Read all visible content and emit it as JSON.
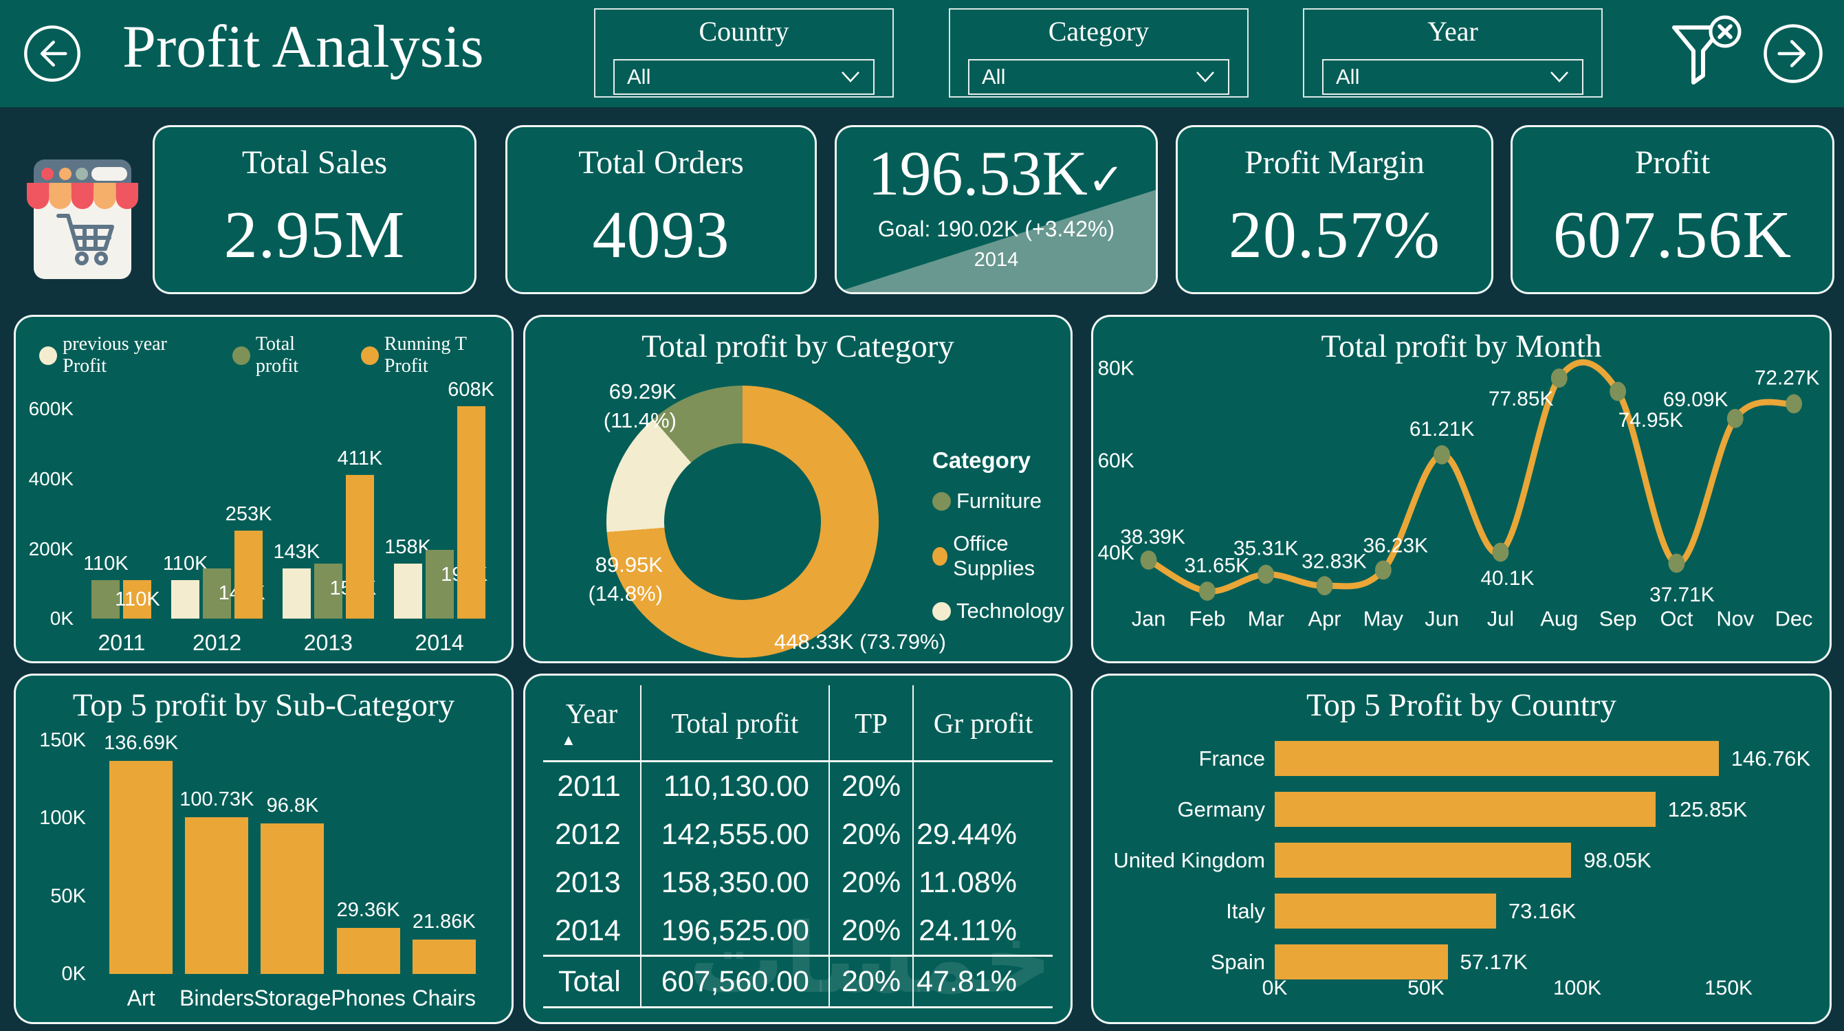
{
  "colors": {
    "teal": "#045E57",
    "background": "#0E333D",
    "orange": "#EAA637",
    "cream": "#F4ECCE",
    "olive": "#7E9159",
    "goal_overlay": "#68988F",
    "text": "#FFFFFF"
  },
  "header": {
    "title": "Profit Analysis",
    "slicers": [
      {
        "label": "Country",
        "value": "All"
      },
      {
        "label": "Category",
        "value": "All"
      },
      {
        "label": "Year",
        "value": "All"
      }
    ]
  },
  "kpis": {
    "total_sales": {
      "title": "Total Sales",
      "value": "2.95M"
    },
    "total_orders": {
      "title": "Total Orders",
      "value": "4093"
    },
    "goal": {
      "value": "196.53K",
      "check": "✓",
      "subtitle": "Goal: 190.02K (+3.42%)",
      "year": "2014"
    },
    "profit_margin": {
      "title": "Profit Margin",
      "value": "20.57%"
    },
    "profit": {
      "title": "Profit",
      "value": "607.56K"
    }
  },
  "chart_data": [
    {
      "id": "profit-by-year",
      "type": "bar",
      "legend": [
        {
          "label": "previous year Profit",
          "color": "#F4ECCE"
        },
        {
          "label": "Total profit",
          "color": "#7E9159"
        },
        {
          "label": "Running T Profit",
          "color": "#EAA637"
        }
      ],
      "categories": [
        "2011",
        "2012",
        "2013",
        "2014"
      ],
      "series": [
        {
          "name": "previous year Profit",
          "color": "#F4ECCE",
          "values": [
            null,
            110,
            143,
            158
          ],
          "labels": [
            null,
            "110K",
            "143K",
            "158K"
          ]
        },
        {
          "name": "Total profit",
          "color": "#7E9159",
          "values": [
            110,
            143,
            158,
            197
          ],
          "labels": [
            "110K",
            "143K",
            "158K",
            "197K"
          ]
        },
        {
          "name": "Running T Profit",
          "color": "#EAA637",
          "values": [
            110,
            253,
            411,
            608
          ],
          "labels": [
            "110K",
            "253K",
            "411K",
            "608K"
          ]
        }
      ],
      "y_ticks": [
        {
          "v": 0,
          "label": "0K"
        },
        {
          "v": 200,
          "label": "200K"
        },
        {
          "v": 400,
          "label": "400K"
        },
        {
          "v": 600,
          "label": "600K"
        }
      ],
      "ymax": 660,
      "unit": "K"
    },
    {
      "id": "profit-by-category",
      "type": "pie",
      "title": "Total profit by Category",
      "legend_title": "Category",
      "slices": [
        {
          "label": "Office Supplies",
          "value": 448.33,
          "pct": 73.79,
          "color": "#EAA637",
          "callout": [
            "448.33K (73.79%)"
          ]
        },
        {
          "label": "Technology",
          "value": 89.95,
          "pct": 14.8,
          "color": "#F4ECCE",
          "callout": [
            "89.95K",
            "(14.8%)"
          ]
        },
        {
          "label": "Furniture",
          "value": 69.29,
          "pct": 11.4,
          "color": "#7E9159",
          "callout": [
            "69.29K",
            "(11.4%)"
          ]
        }
      ],
      "legend": [
        {
          "label": "Furniture",
          "color": "#7E9159"
        },
        {
          "label": "Office Supplies",
          "color": "#EAA637"
        },
        {
          "label": "Technology",
          "color": "#F4ECCE"
        }
      ]
    },
    {
      "id": "profit-by-month",
      "type": "line",
      "title": "Total profit by Month",
      "x": [
        "Jan",
        "Feb",
        "Mar",
        "Apr",
        "May",
        "Jun",
        "Jul",
        "Aug",
        "Sep",
        "Oct",
        "Nov",
        "Dec"
      ],
      "values": [
        38.39,
        31.65,
        35.31,
        32.83,
        36.23,
        61.21,
        40.1,
        77.85,
        74.95,
        37.71,
        69.09,
        72.27
      ],
      "labels": [
        "38.39K",
        "31.65K",
        "35.31K",
        "32.83K",
        "36.23K",
        "61.21K",
        "40.1K",
        "77.85K",
        "74.95K",
        "37.71K",
        "69.09K",
        "72.27K"
      ],
      "y_ticks": [
        {
          "v": 40,
          "label": "40K"
        },
        {
          "v": 60,
          "label": "60K"
        },
        {
          "v": 80,
          "label": "80K"
        }
      ],
      "line_color": "#EAA637",
      "marker_color": "#7E9159"
    },
    {
      "id": "top5-subcategory",
      "type": "bar",
      "title": "Top 5 profit by Sub-Category",
      "categories": [
        "Art",
        "Binders",
        "Storage",
        "Phones",
        "Chairs"
      ],
      "values": [
        136.69,
        100.73,
        96.8,
        29.36,
        21.86
      ],
      "labels": [
        "136.69K",
        "100.73K",
        "96.8K",
        "29.36K",
        "21.86K"
      ],
      "y_ticks": [
        {
          "v": 0,
          "label": "0K"
        },
        {
          "v": 50,
          "label": "50K"
        },
        {
          "v": 100,
          "label": "100K"
        },
        {
          "v": 150,
          "label": "150K"
        }
      ],
      "ymax": 160,
      "color": "#EAA637"
    },
    {
      "id": "profit-table",
      "type": "table",
      "sort_indicator": "▲",
      "headers": [
        "Year",
        "Total profit",
        "TP",
        "Gr profit"
      ],
      "rows": [
        [
          "2011",
          "110,130.00",
          "20%",
          ""
        ],
        [
          "2012",
          "142,555.00",
          "20%",
          "29.44%"
        ],
        [
          "2013",
          "158,350.00",
          "20%",
          "11.08%"
        ],
        [
          "2014",
          "196,525.00",
          "20%",
          "24.11%"
        ]
      ],
      "total": [
        "Total",
        "607,560.00",
        "20%",
        "47.81%"
      ]
    },
    {
      "id": "top5-country",
      "type": "bar",
      "orientation": "horizontal",
      "title": "Top 5 Profit by Country",
      "categories": [
        "France",
        "Germany",
        "United Kingdom",
        "Italy",
        "Spain"
      ],
      "values": [
        146.76,
        125.85,
        98.05,
        73.16,
        57.17
      ],
      "labels": [
        "146.76K",
        "125.85K",
        "98.05K",
        "73.16K",
        "57.17K"
      ],
      "x_ticks": [
        {
          "v": 0,
          "label": "0K"
        },
        {
          "v": 50,
          "label": "50K"
        },
        {
          "v": 100,
          "label": "100K"
        },
        {
          "v": 150,
          "label": "150K"
        }
      ],
      "xmax": 150,
      "color": "#EAA637"
    }
  ],
  "watermark": "خمسات"
}
